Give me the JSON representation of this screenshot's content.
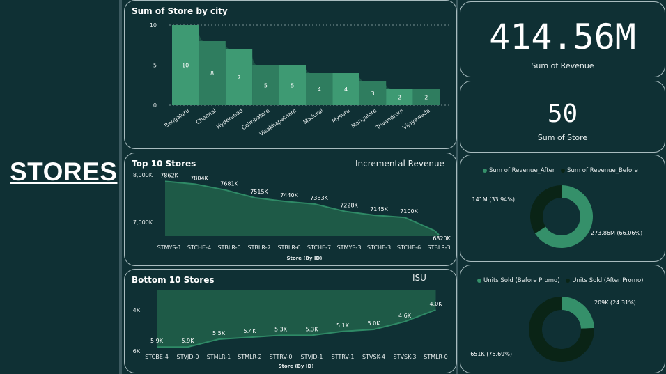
{
  "page": {
    "title": "STORES"
  },
  "kpis": {
    "revenue": {
      "value": "414.56M",
      "label": "Sum of Revenue"
    },
    "stores": {
      "value": "50",
      "label": "Sum of Store"
    }
  },
  "colors": {
    "bg": "#0f3034",
    "bar": "#2f7d5f",
    "bar_alt": "#3e9a73",
    "area": "#1e5a47",
    "line": "#2f8a66",
    "donut_after": "#35906a",
    "donut_before": "#0a2416"
  },
  "chart_data": [
    {
      "type": "bar",
      "title": "Sum of Store by city",
      "categories": [
        "Bengaluru",
        "Chennai",
        "Hyderabad",
        "Coimbatore",
        "Visakhapatnam",
        "Madurai",
        "Mysuru",
        "Mangalore",
        "Trivandrum",
        "Vijayawada"
      ],
      "values": [
        10,
        8,
        7,
        5,
        5,
        4,
        4,
        3,
        2,
        2
      ],
      "yticks": [
        "10",
        "5",
        "0"
      ],
      "ylim": [
        0,
        10
      ],
      "grid": true
    },
    {
      "type": "area",
      "title": "Top 10 Stores",
      "subtitle": "Incremental Revenue",
      "xlabel": "Store (By ID)",
      "categories": [
        "STMYS-1",
        "STCHE-4",
        "STBLR-0",
        "STBLR-7",
        "STBLR-6",
        "STCHE-7",
        "STMYS-3",
        "STCHE-3",
        "STCHE-6",
        "STBLR-3"
      ],
      "values": [
        7862,
        7804,
        7681,
        7515,
        7440,
        7383,
        7228,
        7145,
        7100,
        6820
      ],
      "labels": [
        "7862K",
        "7804K",
        "7681K",
        "7515K",
        "7440K",
        "7383K",
        "7228K",
        "7145K",
        "7100K",
        "6820K"
      ],
      "yticks": [
        "8,000K",
        "7,000K"
      ],
      "ylim": [
        6750,
        8000
      ]
    },
    {
      "type": "area",
      "title": "Bottom 10 Stores",
      "subtitle": "ISU",
      "xlabel": "Store (By ID)",
      "categories": [
        "STCBE-4",
        "STVJD-0",
        "STMLR-1",
        "STMLR-2",
        "STTRV-0",
        "STVJD-1",
        "STTRV-1",
        "STVSK-4",
        "STVSK-3",
        "STMLR-0"
      ],
      "values": [
        5.9,
        5.9,
        5.5,
        5.4,
        5.3,
        5.3,
        5.1,
        5.0,
        4.6,
        4.0
      ],
      "labels": [
        "5.9K",
        "5.9K",
        "5.5K",
        "5.4K",
        "5.3K",
        "5.3K",
        "5.1K",
        "5.0K",
        "4.6K",
        "4.0K"
      ],
      "yticks": [
        "4K",
        "6K"
      ],
      "ylim": [
        4,
        6
      ],
      "y_reversed": true
    },
    {
      "type": "pie",
      "legend": [
        "Sum of Revenue_After",
        "Sum of Revenue_Before"
      ],
      "slices": [
        {
          "name": "Sum of Revenue_After",
          "value": 273.86,
          "label": "273.86M (66.06%)"
        },
        {
          "name": "Sum of Revenue_Before",
          "value": 141,
          "label": "141M (33.94%)"
        }
      ]
    },
    {
      "type": "pie",
      "legend": [
        "Units Sold (Before Promo)",
        "Units Sold (After Promo)"
      ],
      "slices": [
        {
          "name": "Units Sold (Before Promo)",
          "value": 209,
          "label": "209K (24.31%)"
        },
        {
          "name": "Units Sold (After Promo)",
          "value": 651,
          "label": "651K (75.69%)"
        }
      ]
    }
  ]
}
